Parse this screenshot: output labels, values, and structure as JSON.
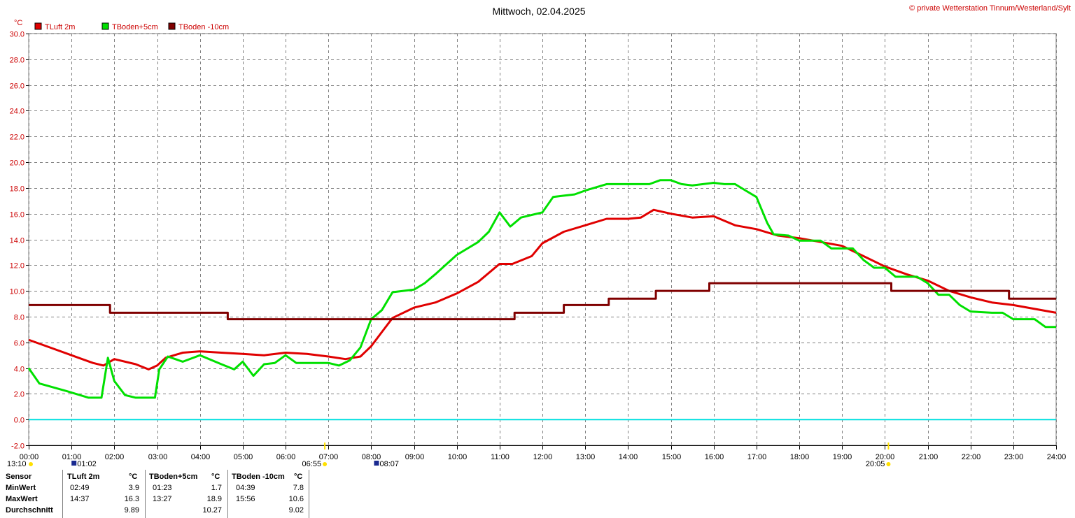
{
  "title": "Mittwoch, 02.04.2025",
  "copyright": "© private Wetterstation Tinnum/Westerland/Sylt",
  "unit": "°C",
  "legend": [
    {
      "label": "TLuft 2m",
      "color": "#e00000"
    },
    {
      "label": "TBoden+5cm",
      "color": "#00e000"
    },
    {
      "label": "TBoden -10cm",
      "color": "#800000"
    }
  ],
  "sun_markers": {
    "sunrise": "06:55",
    "sunset": "20:05",
    "moonrise": "08:07",
    "moonset": "01:02",
    "moon_age": "13:10"
  },
  "colors": {
    "grid": "#808080",
    "zero_line": "#00e0e0",
    "axis": "#000000",
    "text_red": "#cc0000"
  },
  "chart_data": {
    "type": "line",
    "title": "Mittwoch, 02.04.2025",
    "ylabel": "°C",
    "xlim": [
      0,
      24
    ],
    "ylim": [
      -2,
      30
    ],
    "y_ticks": [
      "-2.0",
      "0.0",
      "2.0",
      "4.0",
      "6.0",
      "8.0",
      "10.0",
      "12.0",
      "14.0",
      "16.0",
      "18.0",
      "20.0",
      "22.0",
      "24.0",
      "26.0",
      "28.0",
      "30.0"
    ],
    "x_ticks": [
      "00:00",
      "01:00",
      "02:00",
      "03:00",
      "04:00",
      "05:00",
      "06:00",
      "07:00",
      "08:00",
      "09:00",
      "10:00",
      "11:00",
      "12:00",
      "13:00",
      "14:00",
      "15:00",
      "16:00",
      "17:00",
      "18:00",
      "19:00",
      "20:00",
      "21:00",
      "22:00",
      "23:00",
      "24:00"
    ],
    "grid": true,
    "legend_position": "top-left",
    "series": [
      {
        "name": "TLuft 2m",
        "color": "#e00000",
        "points": [
          [
            0,
            6.2
          ],
          [
            0.5,
            5.6
          ],
          [
            1,
            5.0
          ],
          [
            1.5,
            4.4
          ],
          [
            1.75,
            4.2
          ],
          [
            2,
            4.7
          ],
          [
            2.5,
            4.3
          ],
          [
            2.8,
            3.9
          ],
          [
            3,
            4.2
          ],
          [
            3.2,
            4.8
          ],
          [
            3.6,
            5.2
          ],
          [
            4,
            5.3
          ],
          [
            4.5,
            5.2
          ],
          [
            5,
            5.1
          ],
          [
            5.5,
            5.0
          ],
          [
            6,
            5.2
          ],
          [
            6.5,
            5.1
          ],
          [
            7,
            4.9
          ],
          [
            7.4,
            4.7
          ],
          [
            7.75,
            4.9
          ],
          [
            8,
            5.7
          ],
          [
            8.25,
            6.8
          ],
          [
            8.5,
            7.9
          ],
          [
            9,
            8.7
          ],
          [
            9.5,
            9.1
          ],
          [
            10,
            9.8
          ],
          [
            10.5,
            10.7
          ],
          [
            11,
            12.1
          ],
          [
            11.3,
            12.1
          ],
          [
            11.75,
            12.7
          ],
          [
            12,
            13.7
          ],
          [
            12.5,
            14.6
          ],
          [
            13,
            15.1
          ],
          [
            13.5,
            15.6
          ],
          [
            14,
            15.6
          ],
          [
            14.3,
            15.7
          ],
          [
            14.6,
            16.3
          ],
          [
            15,
            16.0
          ],
          [
            15.5,
            15.7
          ],
          [
            16,
            15.8
          ],
          [
            16.5,
            15.1
          ],
          [
            17,
            14.8
          ],
          [
            17.5,
            14.3
          ],
          [
            18,
            14.1
          ],
          [
            18.5,
            13.8
          ],
          [
            19,
            13.5
          ],
          [
            19.5,
            12.7
          ],
          [
            20,
            11.9
          ],
          [
            20.5,
            11.3
          ],
          [
            21,
            10.8
          ],
          [
            21.5,
            10.0
          ],
          [
            22,
            9.5
          ],
          [
            22.5,
            9.1
          ],
          [
            23,
            8.9
          ],
          [
            23.5,
            8.6
          ],
          [
            24,
            8.3
          ]
        ]
      },
      {
        "name": "TBoden+5cm",
        "color": "#00e000",
        "points": [
          [
            0,
            4.0
          ],
          [
            0.25,
            2.8
          ],
          [
            0.9,
            2.2
          ],
          [
            1.4,
            1.7
          ],
          [
            1.7,
            1.7
          ],
          [
            1.85,
            4.8
          ],
          [
            2,
            3.0
          ],
          [
            2.25,
            1.9
          ],
          [
            2.5,
            1.7
          ],
          [
            2.95,
            1.7
          ],
          [
            3.05,
            3.9
          ],
          [
            3.25,
            4.9
          ],
          [
            3.6,
            4.5
          ],
          [
            4,
            5.0
          ],
          [
            4.5,
            4.3
          ],
          [
            4.8,
            3.9
          ],
          [
            5,
            4.5
          ],
          [
            5.25,
            3.4
          ],
          [
            5.5,
            4.3
          ],
          [
            5.75,
            4.4
          ],
          [
            6,
            5.0
          ],
          [
            6.25,
            4.4
          ],
          [
            7,
            4.4
          ],
          [
            7.25,
            4.2
          ],
          [
            7.5,
            4.6
          ],
          [
            7.75,
            5.6
          ],
          [
            8,
            7.8
          ],
          [
            8.25,
            8.5
          ],
          [
            8.5,
            9.9
          ],
          [
            9,
            10.1
          ],
          [
            9.25,
            10.6
          ],
          [
            9.5,
            11.3
          ],
          [
            10,
            12.8
          ],
          [
            10.5,
            13.8
          ],
          [
            10.75,
            14.6
          ],
          [
            11,
            16.1
          ],
          [
            11.25,
            15.0
          ],
          [
            11.5,
            15.7
          ],
          [
            12,
            16.1
          ],
          [
            12.25,
            17.3
          ],
          [
            12.5,
            17.4
          ],
          [
            12.75,
            17.5
          ],
          [
            13,
            17.8
          ],
          [
            13.5,
            18.3
          ],
          [
            14,
            18.3
          ],
          [
            14.5,
            18.3
          ],
          [
            14.75,
            18.6
          ],
          [
            15,
            18.6
          ],
          [
            15.25,
            18.3
          ],
          [
            15.5,
            18.2
          ],
          [
            16,
            18.4
          ],
          [
            16.25,
            18.3
          ],
          [
            16.5,
            18.3
          ],
          [
            16.75,
            17.8
          ],
          [
            17,
            17.3
          ],
          [
            17.25,
            15.3
          ],
          [
            17.4,
            14.4
          ],
          [
            17.75,
            14.3
          ],
          [
            18,
            13.9
          ],
          [
            18.5,
            13.9
          ],
          [
            18.75,
            13.3
          ],
          [
            19,
            13.3
          ],
          [
            19.25,
            13.3
          ],
          [
            19.5,
            12.4
          ],
          [
            19.75,
            11.8
          ],
          [
            20,
            11.8
          ],
          [
            20.25,
            11.1
          ],
          [
            20.75,
            11.1
          ],
          [
            21,
            10.6
          ],
          [
            21.25,
            9.7
          ],
          [
            21.5,
            9.7
          ],
          [
            21.75,
            8.9
          ],
          [
            22,
            8.4
          ],
          [
            22.5,
            8.3
          ],
          [
            22.75,
            8.3
          ],
          [
            23,
            7.8
          ],
          [
            23.5,
            7.8
          ],
          [
            23.75,
            7.2
          ],
          [
            24,
            7.2
          ]
        ]
      },
      {
        "name": "TBoden -10cm",
        "color": "#800000",
        "points": [
          [
            0,
            8.9
          ],
          [
            1.9,
            8.9
          ],
          [
            1.9,
            8.3
          ],
          [
            4.65,
            8.3
          ],
          [
            4.65,
            7.8
          ],
          [
            11.35,
            7.8
          ],
          [
            11.35,
            8.3
          ],
          [
            12.5,
            8.3
          ],
          [
            12.5,
            8.9
          ],
          [
            13.55,
            8.9
          ],
          [
            13.55,
            9.4
          ],
          [
            14.65,
            9.4
          ],
          [
            14.65,
            10.0
          ],
          [
            15.9,
            10.0
          ],
          [
            15.9,
            10.6
          ],
          [
            20.15,
            10.6
          ],
          [
            20.15,
            10.0
          ],
          [
            22.9,
            10.0
          ],
          [
            22.9,
            9.4
          ],
          [
            24,
            9.4
          ]
        ]
      }
    ]
  },
  "stats": {
    "headers": {
      "sensor": "Sensor",
      "s1": "TLuft 2m",
      "u1": "°C",
      "s2": "TBoden+5cm",
      "u2": "°C",
      "s3": "TBoden -10cm",
      "u3": "°C"
    },
    "rows": [
      {
        "label": "MinWert",
        "t1": "02:49",
        "v1": "3.9",
        "t2": "01:23",
        "v2": "1.7",
        "t3": "04:39",
        "v3": "7.8"
      },
      {
        "label": "MaxWert",
        "t1": "14:37",
        "v1": "16.3",
        "t2": "13:27",
        "v2": "18.9",
        "t3": "15:56",
        "v3": "10.6"
      },
      {
        "label": "Durchschnitt",
        "t1": "",
        "v1": "9.89",
        "t2": "",
        "v2": "10.27",
        "t3": "",
        "v3": "9.02"
      }
    ]
  }
}
